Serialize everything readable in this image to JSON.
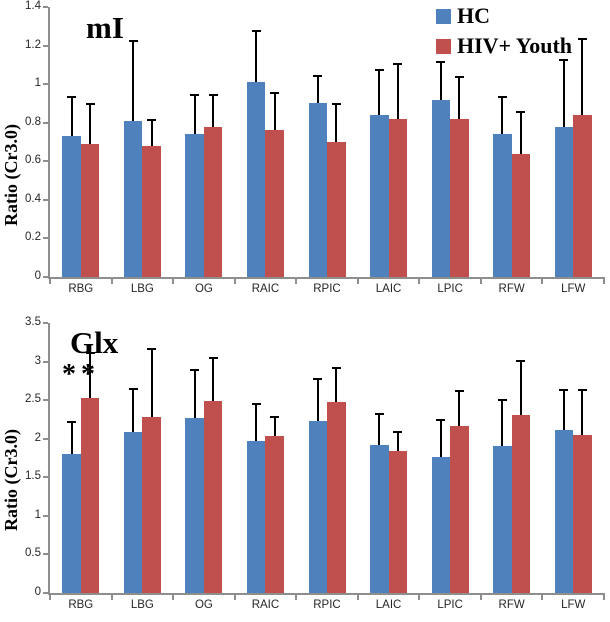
{
  "figure": {
    "legend": {
      "position": "top-right",
      "items": [
        {
          "label": "HC",
          "color": "#4F81BD"
        },
        {
          "label": "HIV+ Youth",
          "color": "#C0504D"
        }
      ]
    },
    "axis_color": "#8E8E8E",
    "error_bar_color": "#000000"
  },
  "chart_data": [
    {
      "type": "bar",
      "title": "mI",
      "xlabel": "",
      "ylabel": "Ratio (Cr3.0)",
      "ylim": [
        0,
        1.4
      ],
      "ytick_labels": [
        "0",
        "0.2",
        "0.4",
        "0.6",
        "0.8",
        "1",
        "1.2",
        "1.4"
      ],
      "grid": false,
      "categories": [
        "RBG",
        "LBG",
        "OG",
        "RAIC",
        "RPIC",
        "LAIC",
        "LPIC",
        "RFW",
        "LFW"
      ],
      "series": [
        {
          "name": "HC",
          "color": "#4F81BD",
          "values": [
            0.73,
            0.81,
            0.74,
            1.01,
            0.9,
            0.84,
            0.92,
            0.74,
            0.78
          ],
          "error_top": [
            0.94,
            1.23,
            0.95,
            1.28,
            1.05,
            1.08,
            1.12,
            0.94,
            1.13
          ]
        },
        {
          "name": "HIV+ Youth",
          "color": "#C0504D",
          "values": [
            0.69,
            0.68,
            0.78,
            0.76,
            0.7,
            0.82,
            0.82,
            0.64,
            0.84
          ],
          "error_top": [
            0.9,
            0.82,
            0.95,
            0.96,
            0.9,
            1.11,
            1.04,
            0.86,
            1.24
          ]
        }
      ],
      "annotation": null
    },
    {
      "type": "bar",
      "title": "Glx",
      "xlabel": "",
      "ylabel": "Ratio (Cr3.0)",
      "ylim": [
        0,
        3.5
      ],
      "ytick_labels": [
        "0",
        "0.5",
        "1",
        "1.5",
        "2",
        "2.5",
        "3",
        "3.5"
      ],
      "grid": false,
      "categories": [
        "RBG",
        "LBG",
        "OG",
        "RAIC",
        "RPIC",
        "LAIC",
        "LPIC",
        "RFW",
        "LFW"
      ],
      "series": [
        {
          "name": "HC",
          "color": "#4F81BD",
          "values": [
            1.8,
            2.09,
            2.27,
            1.97,
            2.23,
            1.92,
            1.76,
            1.9,
            2.11
          ],
          "error_top": [
            2.23,
            2.66,
            2.9,
            2.46,
            2.79,
            2.33,
            2.26,
            2.51,
            2.64
          ]
        },
        {
          "name": "HIV+ Youth",
          "color": "#C0504D",
          "values": [
            2.53,
            2.28,
            2.49,
            2.03,
            2.48,
            1.84,
            2.16,
            2.31,
            2.05
          ],
          "error_top": [
            3.12,
            3.17,
            3.06,
            2.3,
            2.93,
            2.1,
            2.63,
            3.02,
            2.64
          ]
        }
      ],
      "annotation": {
        "text": "**",
        "category": "RBG",
        "category_index": 0
      }
    }
  ]
}
